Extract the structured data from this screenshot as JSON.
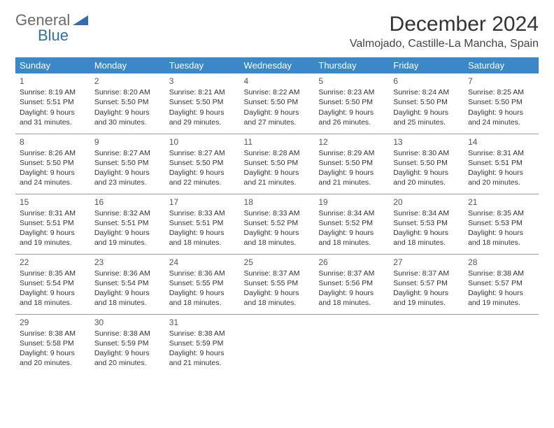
{
  "logo": {
    "top": "General",
    "bottom": "Blue"
  },
  "title": "December 2024",
  "subtitle": "Valmojado, Castille-La Mancha, Spain",
  "colors": {
    "header_bg": "#3b87c8",
    "header_text": "#ffffff",
    "row_border": "#7aa3c9",
    "logo_gray": "#6b6b6b",
    "logo_blue": "#2f6fb0"
  },
  "weekdays": [
    "Sunday",
    "Monday",
    "Tuesday",
    "Wednesday",
    "Thursday",
    "Friday",
    "Saturday"
  ],
  "weeks": [
    [
      {
        "day": "1",
        "sunrise": "Sunrise: 8:19 AM",
        "sunset": "Sunset: 5:51 PM",
        "daylight1": "Daylight: 9 hours",
        "daylight2": "and 31 minutes."
      },
      {
        "day": "2",
        "sunrise": "Sunrise: 8:20 AM",
        "sunset": "Sunset: 5:50 PM",
        "daylight1": "Daylight: 9 hours",
        "daylight2": "and 30 minutes."
      },
      {
        "day": "3",
        "sunrise": "Sunrise: 8:21 AM",
        "sunset": "Sunset: 5:50 PM",
        "daylight1": "Daylight: 9 hours",
        "daylight2": "and 29 minutes."
      },
      {
        "day": "4",
        "sunrise": "Sunrise: 8:22 AM",
        "sunset": "Sunset: 5:50 PM",
        "daylight1": "Daylight: 9 hours",
        "daylight2": "and 27 minutes."
      },
      {
        "day": "5",
        "sunrise": "Sunrise: 8:23 AM",
        "sunset": "Sunset: 5:50 PM",
        "daylight1": "Daylight: 9 hours",
        "daylight2": "and 26 minutes."
      },
      {
        "day": "6",
        "sunrise": "Sunrise: 8:24 AM",
        "sunset": "Sunset: 5:50 PM",
        "daylight1": "Daylight: 9 hours",
        "daylight2": "and 25 minutes."
      },
      {
        "day": "7",
        "sunrise": "Sunrise: 8:25 AM",
        "sunset": "Sunset: 5:50 PM",
        "daylight1": "Daylight: 9 hours",
        "daylight2": "and 24 minutes."
      }
    ],
    [
      {
        "day": "8",
        "sunrise": "Sunrise: 8:26 AM",
        "sunset": "Sunset: 5:50 PM",
        "daylight1": "Daylight: 9 hours",
        "daylight2": "and 24 minutes."
      },
      {
        "day": "9",
        "sunrise": "Sunrise: 8:27 AM",
        "sunset": "Sunset: 5:50 PM",
        "daylight1": "Daylight: 9 hours",
        "daylight2": "and 23 minutes."
      },
      {
        "day": "10",
        "sunrise": "Sunrise: 8:27 AM",
        "sunset": "Sunset: 5:50 PM",
        "daylight1": "Daylight: 9 hours",
        "daylight2": "and 22 minutes."
      },
      {
        "day": "11",
        "sunrise": "Sunrise: 8:28 AM",
        "sunset": "Sunset: 5:50 PM",
        "daylight1": "Daylight: 9 hours",
        "daylight2": "and 21 minutes."
      },
      {
        "day": "12",
        "sunrise": "Sunrise: 8:29 AM",
        "sunset": "Sunset: 5:50 PM",
        "daylight1": "Daylight: 9 hours",
        "daylight2": "and 21 minutes."
      },
      {
        "day": "13",
        "sunrise": "Sunrise: 8:30 AM",
        "sunset": "Sunset: 5:50 PM",
        "daylight1": "Daylight: 9 hours",
        "daylight2": "and 20 minutes."
      },
      {
        "day": "14",
        "sunrise": "Sunrise: 8:31 AM",
        "sunset": "Sunset: 5:51 PM",
        "daylight1": "Daylight: 9 hours",
        "daylight2": "and 20 minutes."
      }
    ],
    [
      {
        "day": "15",
        "sunrise": "Sunrise: 8:31 AM",
        "sunset": "Sunset: 5:51 PM",
        "daylight1": "Daylight: 9 hours",
        "daylight2": "and 19 minutes."
      },
      {
        "day": "16",
        "sunrise": "Sunrise: 8:32 AM",
        "sunset": "Sunset: 5:51 PM",
        "daylight1": "Daylight: 9 hours",
        "daylight2": "and 19 minutes."
      },
      {
        "day": "17",
        "sunrise": "Sunrise: 8:33 AM",
        "sunset": "Sunset: 5:51 PM",
        "daylight1": "Daylight: 9 hours",
        "daylight2": "and 18 minutes."
      },
      {
        "day": "18",
        "sunrise": "Sunrise: 8:33 AM",
        "sunset": "Sunset: 5:52 PM",
        "daylight1": "Daylight: 9 hours",
        "daylight2": "and 18 minutes."
      },
      {
        "day": "19",
        "sunrise": "Sunrise: 8:34 AM",
        "sunset": "Sunset: 5:52 PM",
        "daylight1": "Daylight: 9 hours",
        "daylight2": "and 18 minutes."
      },
      {
        "day": "20",
        "sunrise": "Sunrise: 8:34 AM",
        "sunset": "Sunset: 5:53 PM",
        "daylight1": "Daylight: 9 hours",
        "daylight2": "and 18 minutes."
      },
      {
        "day": "21",
        "sunrise": "Sunrise: 8:35 AM",
        "sunset": "Sunset: 5:53 PM",
        "daylight1": "Daylight: 9 hours",
        "daylight2": "and 18 minutes."
      }
    ],
    [
      {
        "day": "22",
        "sunrise": "Sunrise: 8:35 AM",
        "sunset": "Sunset: 5:54 PM",
        "daylight1": "Daylight: 9 hours",
        "daylight2": "and 18 minutes."
      },
      {
        "day": "23",
        "sunrise": "Sunrise: 8:36 AM",
        "sunset": "Sunset: 5:54 PM",
        "daylight1": "Daylight: 9 hours",
        "daylight2": "and 18 minutes."
      },
      {
        "day": "24",
        "sunrise": "Sunrise: 8:36 AM",
        "sunset": "Sunset: 5:55 PM",
        "daylight1": "Daylight: 9 hours",
        "daylight2": "and 18 minutes."
      },
      {
        "day": "25",
        "sunrise": "Sunrise: 8:37 AM",
        "sunset": "Sunset: 5:55 PM",
        "daylight1": "Daylight: 9 hours",
        "daylight2": "and 18 minutes."
      },
      {
        "day": "26",
        "sunrise": "Sunrise: 8:37 AM",
        "sunset": "Sunset: 5:56 PM",
        "daylight1": "Daylight: 9 hours",
        "daylight2": "and 18 minutes."
      },
      {
        "day": "27",
        "sunrise": "Sunrise: 8:37 AM",
        "sunset": "Sunset: 5:57 PM",
        "daylight1": "Daylight: 9 hours",
        "daylight2": "and 19 minutes."
      },
      {
        "day": "28",
        "sunrise": "Sunrise: 8:38 AM",
        "sunset": "Sunset: 5:57 PM",
        "daylight1": "Daylight: 9 hours",
        "daylight2": "and 19 minutes."
      }
    ],
    [
      {
        "day": "29",
        "sunrise": "Sunrise: 8:38 AM",
        "sunset": "Sunset: 5:58 PM",
        "daylight1": "Daylight: 9 hours",
        "daylight2": "and 20 minutes."
      },
      {
        "day": "30",
        "sunrise": "Sunrise: 8:38 AM",
        "sunset": "Sunset: 5:59 PM",
        "daylight1": "Daylight: 9 hours",
        "daylight2": "and 20 minutes."
      },
      {
        "day": "31",
        "sunrise": "Sunrise: 8:38 AM",
        "sunset": "Sunset: 5:59 PM",
        "daylight1": "Daylight: 9 hours",
        "daylight2": "and 21 minutes."
      },
      null,
      null,
      null,
      null
    ]
  ]
}
